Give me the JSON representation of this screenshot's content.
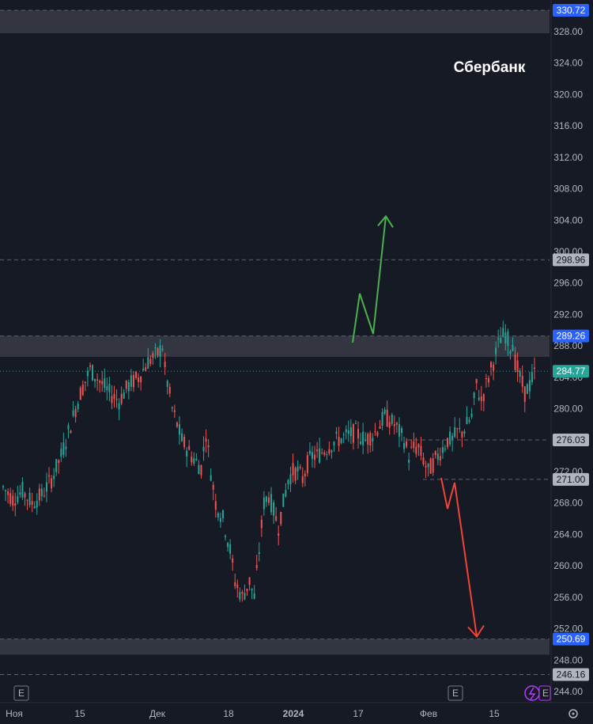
{
  "chart_data": {
    "type": "candlestick",
    "title": "Сбербанк",
    "y_range": [
      243,
      331.5
    ],
    "y_ticks": [
      "244.00",
      "248.00",
      "252.00",
      "256.00",
      "260.00",
      "264.00",
      "268.00",
      "272.00",
      "276.00",
      "280.00",
      "284.00",
      "288.00",
      "292.00",
      "296.00",
      "300.00",
      "304.00",
      "308.00",
      "312.00",
      "316.00",
      "320.00",
      "324.00",
      "328.00"
    ],
    "x_ticks": [
      "Ноя",
      "15",
      "Дек",
      "18",
      "2024",
      "17",
      "Фев",
      "15"
    ],
    "current_price": "284.77",
    "zones": [
      {
        "from": 327.8,
        "to": 330.72
      },
      {
        "from": 286.6,
        "to": 289.26
      },
      {
        "from": 248.7,
        "to": 250.69
      }
    ],
    "price_levels": [
      {
        "value": "330.72",
        "style": "blue"
      },
      {
        "value": "298.96",
        "style": "gray"
      },
      {
        "value": "289.26",
        "style": "blue"
      },
      {
        "value": "276.03",
        "style": "gray"
      },
      {
        "value": "271.00",
        "style": "gray"
      },
      {
        "value": "250.69",
        "style": "blue"
      },
      {
        "value": "246.16",
        "style": "gray"
      }
    ],
    "path_points": [
      [
        0,
        270
      ],
      [
        4,
        268.5
      ],
      [
        8,
        269.5
      ],
      [
        12,
        268
      ],
      [
        16,
        269
      ],
      [
        20,
        271
      ],
      [
        24,
        274
      ],
      [
        28,
        278
      ],
      [
        32,
        282
      ],
      [
        36,
        285
      ],
      [
        40,
        283.5
      ],
      [
        44,
        282
      ],
      [
        48,
        281
      ],
      [
        52,
        283
      ],
      [
        56,
        284
      ],
      [
        60,
        286
      ],
      [
        64,
        287
      ],
      [
        66,
        288
      ],
      [
        67,
        285
      ],
      [
        70,
        280
      ],
      [
        74,
        276
      ],
      [
        78,
        274
      ],
      [
        82,
        272.5
      ],
      [
        84,
        277
      ],
      [
        86,
        272
      ],
      [
        88,
        268
      ],
      [
        91,
        266
      ],
      [
        94,
        262
      ],
      [
        96,
        258
      ],
      [
        99,
        256
      ],
      [
        102,
        258
      ],
      [
        104,
        256
      ],
      [
        106,
        262
      ],
      [
        108,
        268
      ],
      [
        110,
        269
      ],
      [
        112,
        267
      ],
      [
        114,
        265
      ],
      [
        116,
        268
      ],
      [
        118,
        271
      ],
      [
        120,
        272
      ],
      [
        122,
        272
      ],
      [
        124,
        271
      ],
      [
        126,
        273
      ],
      [
        128,
        274
      ],
      [
        130,
        274
      ],
      [
        134,
        275
      ],
      [
        138,
        276
      ],
      [
        142,
        276.5
      ],
      [
        146,
        277
      ],
      [
        150,
        276
      ],
      [
        154,
        277
      ],
      [
        158,
        279
      ],
      [
        162,
        278
      ],
      [
        164,
        277
      ],
      [
        166,
        276
      ],
      [
        168,
        274
      ],
      [
        170,
        275
      ],
      [
        172,
        275
      ],
      [
        174,
        273.5
      ],
      [
        176,
        272
      ],
      [
        178,
        273
      ],
      [
        180,
        274
      ],
      [
        182,
        275
      ],
      [
        184,
        276
      ],
      [
        186,
        276
      ],
      [
        188,
        277
      ],
      [
        190,
        277
      ],
      [
        192,
        278
      ],
      [
        194,
        279
      ],
      [
        196,
        283
      ],
      [
        198,
        281
      ],
      [
        200,
        283
      ],
      [
        202,
        285
      ],
      [
        204,
        287
      ],
      [
        206,
        289
      ],
      [
        208,
        289.5
      ],
      [
        210,
        288
      ],
      [
        211,
        288.5
      ],
      [
        212,
        286
      ],
      [
        214,
        284
      ],
      [
        216,
        282
      ],
      [
        218,
        283
      ],
      [
        220,
        284.5
      ]
    ],
    "annotations": [
      {
        "type": "arrow",
        "color": "#4caf50",
        "direction": "up",
        "target": 304.5
      },
      {
        "type": "arrow",
        "color": "#f44336",
        "direction": "down",
        "target": 251
      }
    ]
  },
  "badges": {
    "event_markers": [
      "E",
      "E"
    ],
    "flash_icon": "lightning-icon",
    "settings_icon": "gear-icon"
  }
}
